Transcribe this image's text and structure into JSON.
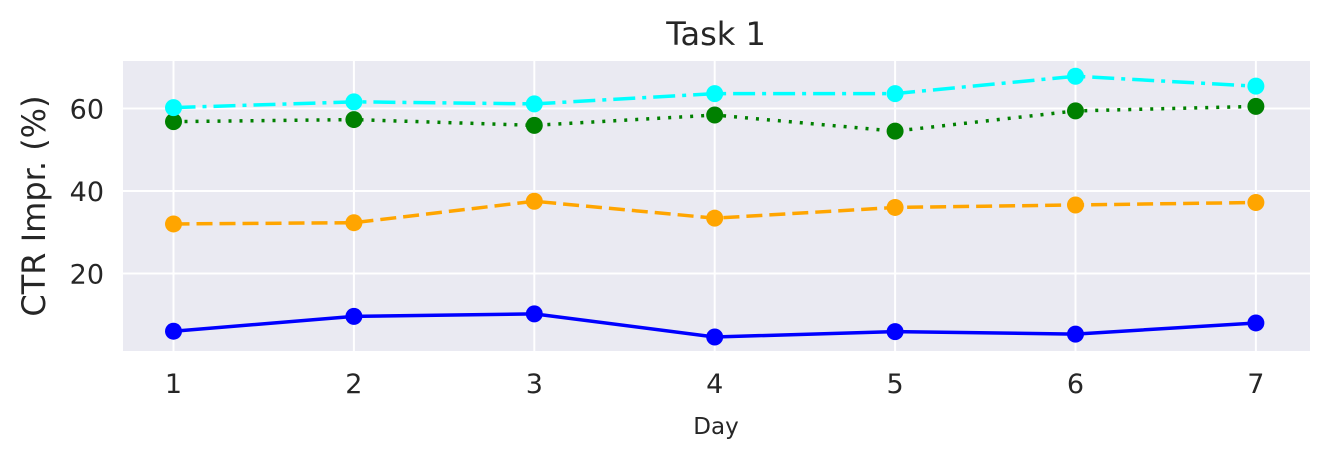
{
  "chart_data": {
    "type": "line",
    "title": "Task 1",
    "xlabel": "Day",
    "ylabel": "CTR Impr. (%)",
    "x": [
      1,
      2,
      3,
      4,
      5,
      6,
      7
    ],
    "x_ticks": [
      "1",
      "2",
      "3",
      "4",
      "5",
      "6",
      "7"
    ],
    "y_ticks": [
      20,
      40,
      60
    ],
    "y_tick_labels": [
      "20",
      "40",
      "60"
    ],
    "xlim": [
      0.72,
      7.3
    ],
    "ylim": [
      1.2,
      71.5
    ],
    "grid": true,
    "background": "#eaeaf2",
    "series": [
      {
        "color": "#0000ff",
        "style": "solid",
        "values": [
          6.0,
          9.6,
          10.2,
          4.6,
          5.9,
          5.3,
          8.0
        ]
      },
      {
        "color": "#ffa500",
        "style": "dashed",
        "values": [
          32.0,
          32.3,
          37.5,
          33.4,
          36.0,
          36.6,
          37.2
        ]
      },
      {
        "color": "#008000",
        "style": "dotted",
        "values": [
          56.8,
          57.3,
          55.9,
          58.4,
          54.5,
          59.4,
          60.5
        ]
      },
      {
        "color": "#00ffff",
        "style": "dashdot",
        "values": [
          60.2,
          61.6,
          61.1,
          63.6,
          63.6,
          67.8,
          65.4
        ]
      }
    ]
  }
}
